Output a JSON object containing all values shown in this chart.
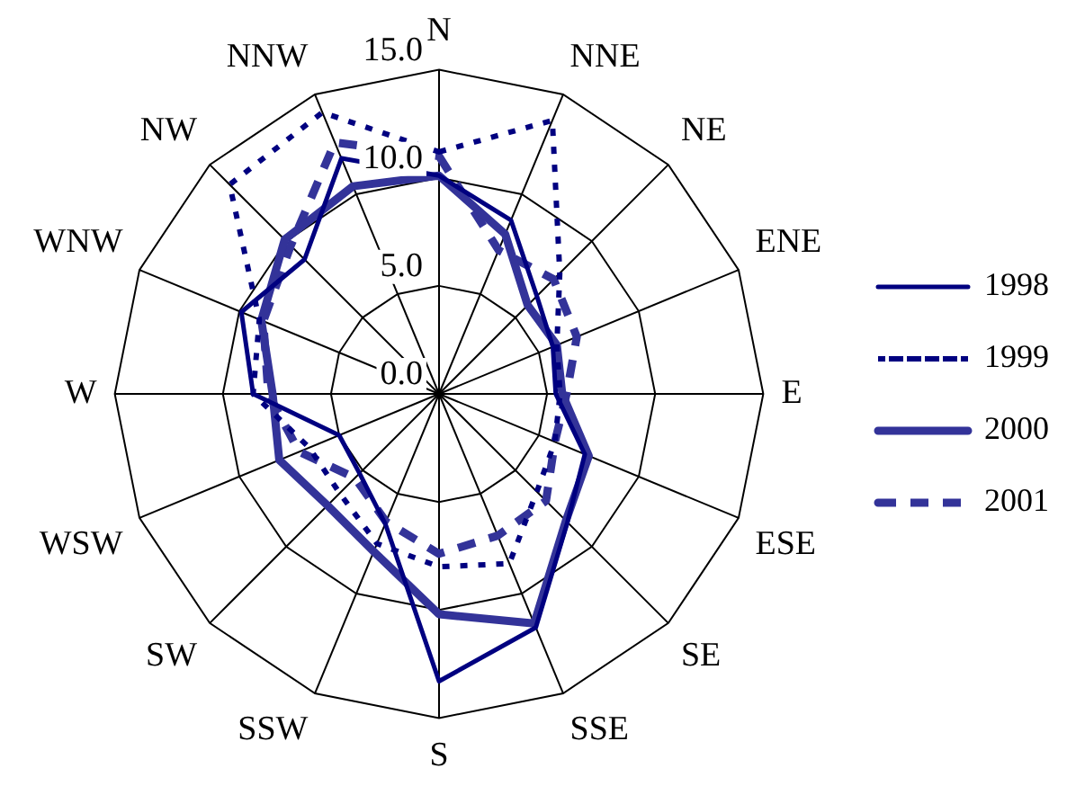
{
  "chart_data": {
    "type": "radar",
    "categories": [
      "N",
      "NNE",
      "NE",
      "ENE",
      "E",
      "ESE",
      "SE",
      "SSE",
      "S",
      "SSW",
      "SW",
      "WSW",
      "W",
      "WNW",
      "NW",
      "NNW"
    ],
    "series": [
      {
        "name": "1998",
        "color": "#000080",
        "line_style": "solid",
        "values": [
          10.1,
          8.7,
          6.4,
          5.7,
          5.4,
          7.3,
          8.4,
          11.7,
          13.3,
          6.5,
          5.2,
          5.0,
          8.6,
          9.9,
          8.8,
          11.8
        ]
      },
      {
        "name": "1999",
        "color": "#000080",
        "line_style": "dotted",
        "values": [
          11.2,
          13.7,
          7.9,
          5.9,
          5.6,
          5.8,
          6.4,
          8.5,
          8.0,
          7.5,
          6.5,
          6.5,
          8.6,
          9.0,
          13.7,
          14.1
        ]
      },
      {
        "name": "2000",
        "color": "#333399",
        "line_style": "solid",
        "values": [
          10.1,
          8.0,
          5.8,
          5.9,
          5.7,
          7.5,
          8.3,
          11.5,
          10.2,
          7.9,
          7.3,
          8.0,
          7.7,
          8.9,
          10.1,
          10.4
        ]
      },
      {
        "name": "2001",
        "color": "#333399",
        "line_style": "dashed",
        "values": [
          11.0,
          7.2,
          7.5,
          6.9,
          5.9,
          5.8,
          7.0,
          7.1,
          7.4,
          6.4,
          5.5,
          7.0,
          7.9,
          8.8,
          9.7,
          12.6
        ]
      }
    ],
    "ylim": [
      0,
      15
    ],
    "yticks": [
      {
        "value": 0,
        "label": "0.0"
      },
      {
        "value": 5,
        "label": "5.0"
      },
      {
        "value": 10,
        "label": "10.0"
      },
      {
        "value": 15,
        "label": "15.0"
      }
    ],
    "grid": true,
    "legend": "right",
    "marker": "none"
  }
}
